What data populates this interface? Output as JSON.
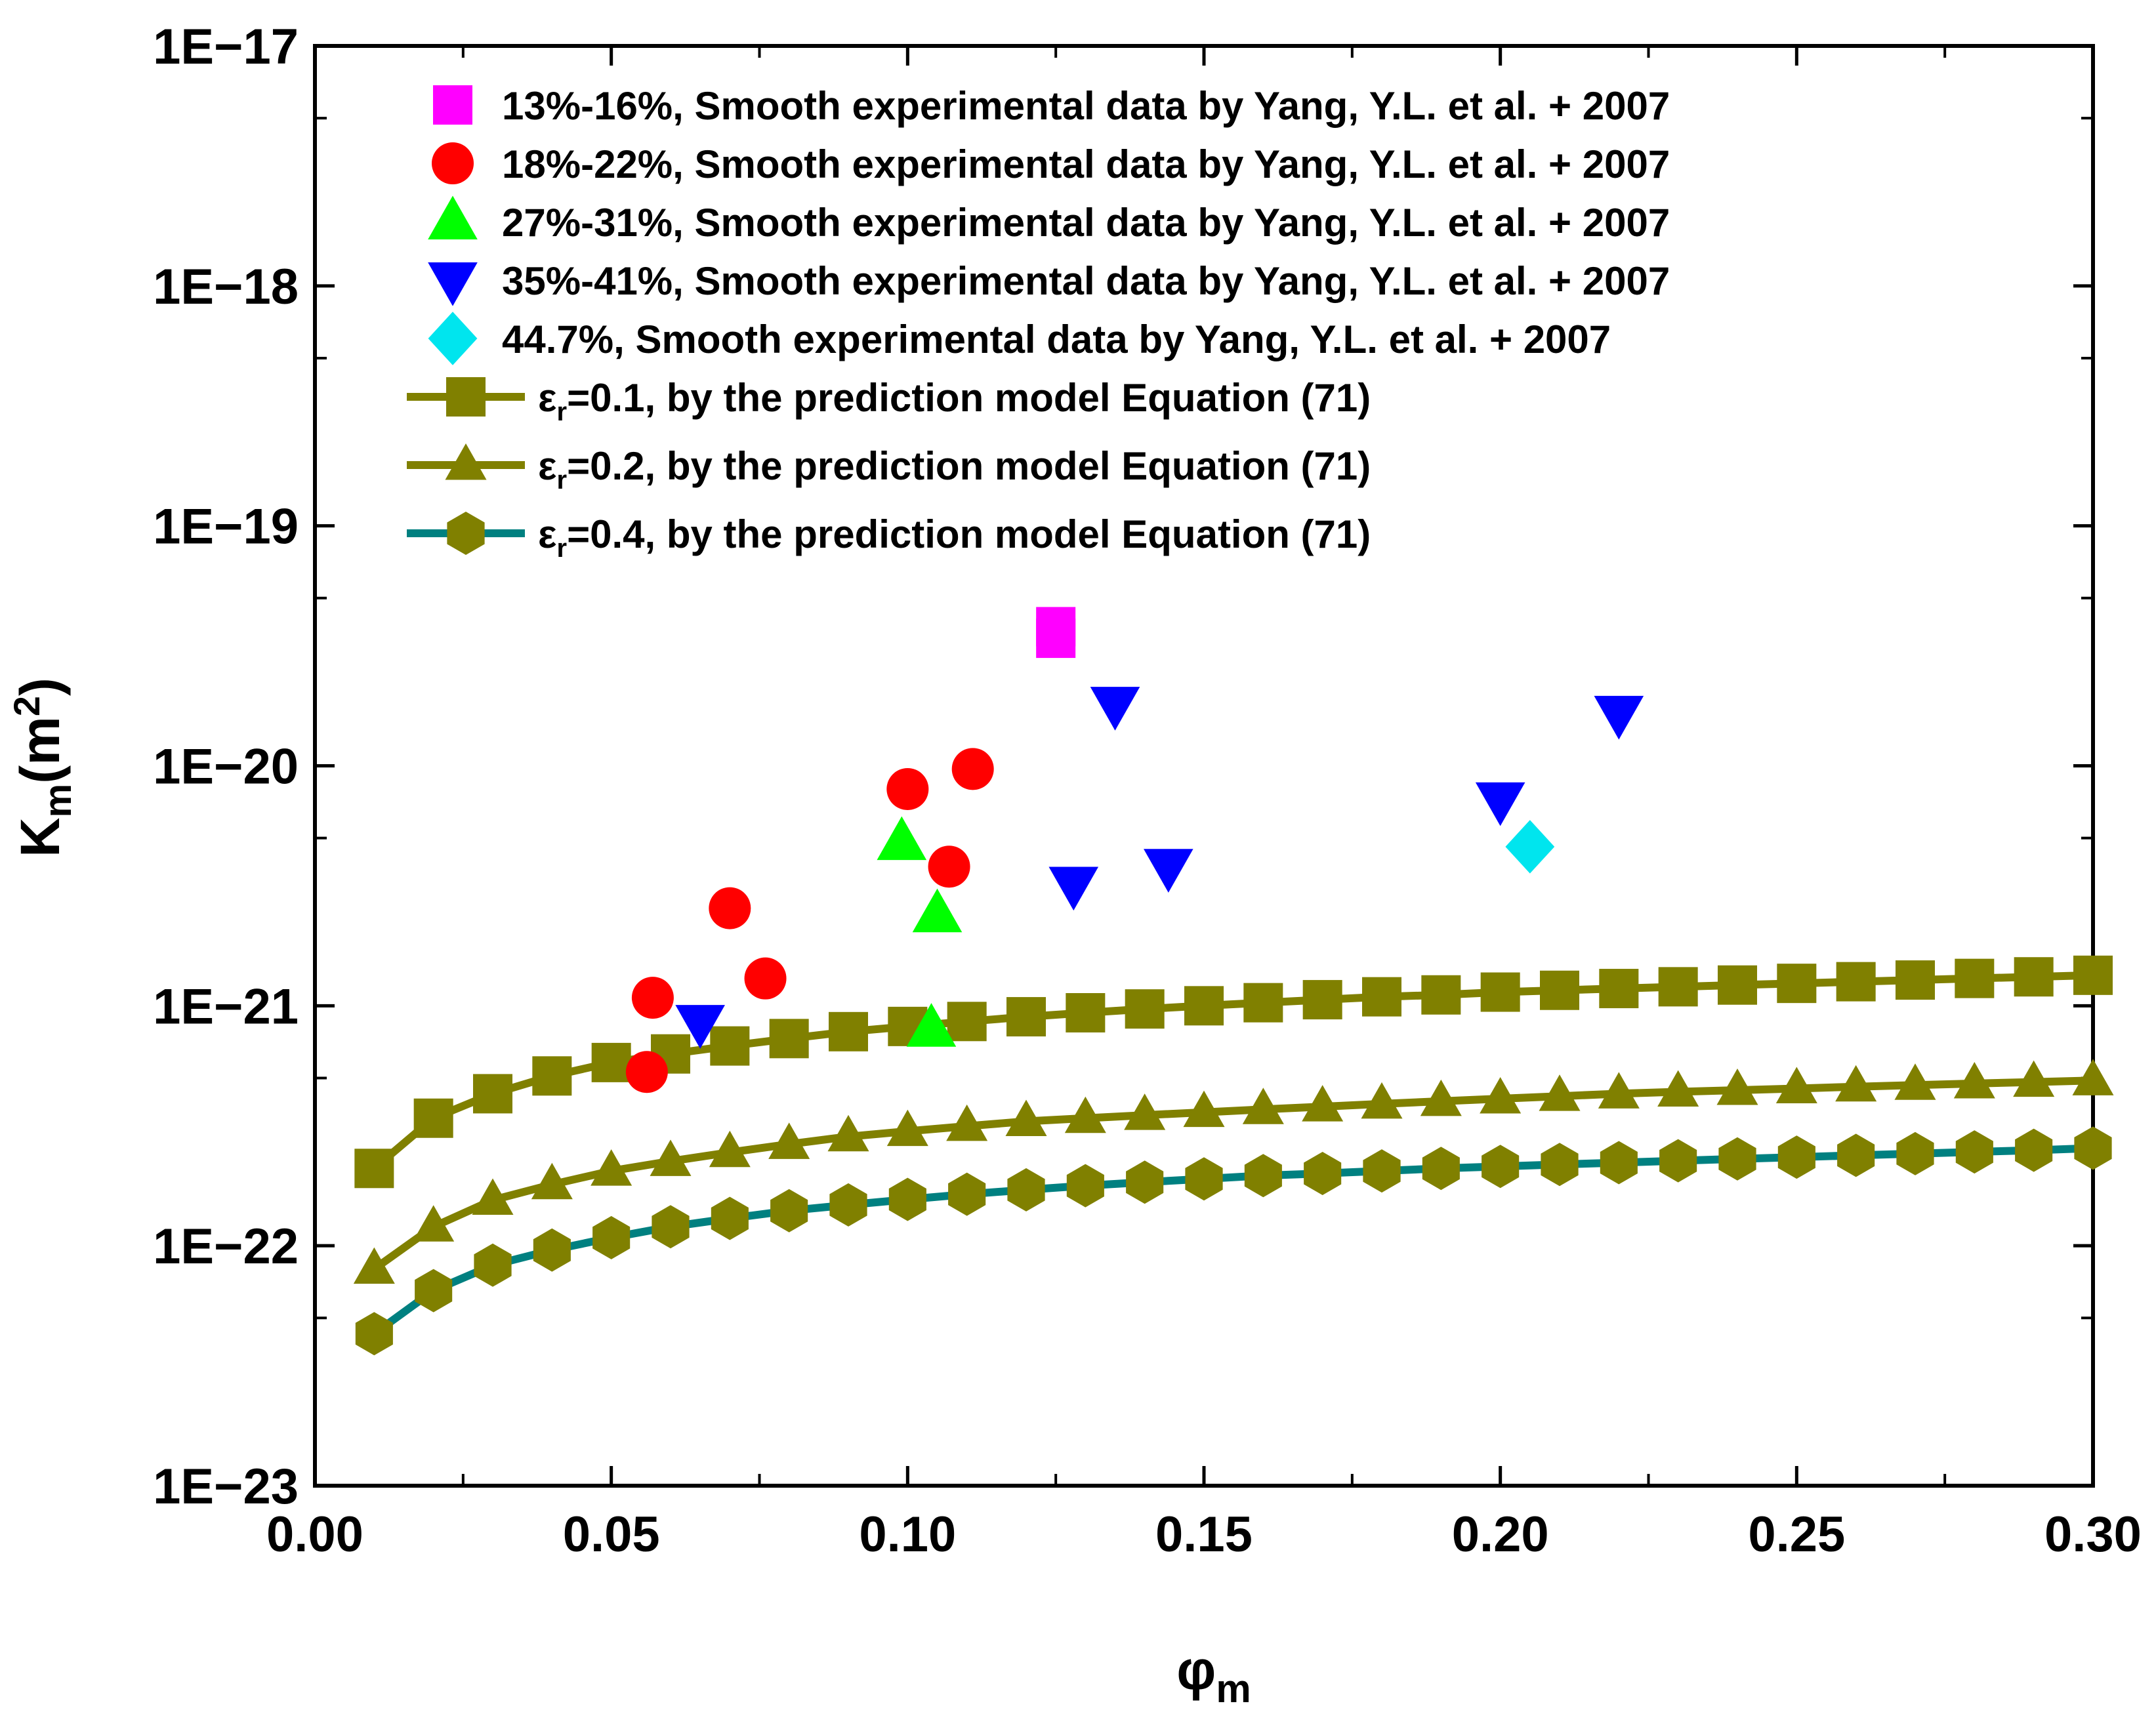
{
  "chart_data": {
    "type": "scatter",
    "title": "",
    "xlabel": "φm",
    "ylabel": "Km(m2)",
    "xlim": [
      0.0,
      0.3
    ],
    "ylim": [
      1e-23,
      1e-17
    ],
    "yscale": "log",
    "grid": false,
    "legend_position": "top-left",
    "xtick_labels": [
      "0.00",
      "0.05",
      "0.10",
      "0.15",
      "0.20",
      "0.25",
      "0.30"
    ],
    "xtick_values": [
      0.0,
      0.05,
      0.1,
      0.15,
      0.2,
      0.25,
      0.3
    ],
    "ytick_labels": [
      "1E−23",
      "1E−22",
      "1E−21",
      "1E−20",
      "1E−19",
      "1E−18",
      "1E−17"
    ],
    "ytick_values": [
      1e-23,
      1e-22,
      1e-21,
      1e-20,
      1e-19,
      1e-18,
      1e-17
    ],
    "scatter_series": [
      {
        "name": "13%-16%, Smooth experimental data by Yang, Y.L. et al. + 2007",
        "marker": "square",
        "color": "#ff00ff",
        "points": [
          [
            0.125,
            3.8e-20
          ],
          [
            0.125,
            3.4e-20
          ]
        ]
      },
      {
        "name": "18%-22%, Smooth experimental data by Yang, Y.L. et al. + 2007",
        "marker": "circle",
        "color": "#ff0000",
        "points": [
          [
            0.057,
            1.08e-21
          ],
          [
            0.056,
            5.3e-22
          ],
          [
            0.07,
            2.55e-21
          ],
          [
            0.076,
            1.3e-21
          ],
          [
            0.1,
            8e-21
          ],
          [
            0.107,
            3.8e-21
          ],
          [
            0.111,
            9.7e-21
          ]
        ]
      },
      {
        "name": "27%-31%, Smooth experimental data by Yang, Y.L. et al. + 2007",
        "marker": "triangle-up",
        "color": "#00ff00",
        "points": [
          [
            0.099,
            4.8e-21
          ],
          [
            0.105,
            2.4e-21
          ],
          [
            0.104,
            8e-22
          ]
        ]
      },
      {
        "name": "35%-41%, Smooth experimental data by Yang, Y.L. et al. + 2007",
        "marker": "triangle-down",
        "color": "#0000ff",
        "points": [
          [
            0.065,
            8.5e-22
          ],
          [
            0.128,
            3.2e-21
          ],
          [
            0.135,
            1.8e-20
          ],
          [
            0.144,
            3.8e-21
          ],
          [
            0.2,
            7.2e-21
          ],
          [
            0.22,
            1.65e-20
          ]
        ]
      },
      {
        "name": "44.7%, Smooth experimental data by Yang, Y.L. et al. + 2007",
        "marker": "diamond",
        "color": "#00e5ee",
        "points": [
          [
            0.205,
            4.6e-21
          ]
        ]
      }
    ],
    "model_x": [
      0.01,
      0.02,
      0.03,
      0.04,
      0.05,
      0.06,
      0.07,
      0.08,
      0.09,
      0.1,
      0.11,
      0.12,
      0.13,
      0.14,
      0.15,
      0.16,
      0.17,
      0.18,
      0.19,
      0.2,
      0.21,
      0.22,
      0.23,
      0.24,
      0.25,
      0.26,
      0.27,
      0.28,
      0.29,
      0.3
    ],
    "line_series": [
      {
        "name": "=0.1, by the prediction model Equation (71)",
        "marker": "square",
        "line_color": "#808000",
        "marker_color": "#808000",
        "values": [
          2.1e-22,
          3.4e-22,
          4.3e-22,
          5.1e-22,
          5.8e-22,
          6.3e-22,
          6.8e-22,
          7.3e-22,
          7.8e-22,
          8.2e-22,
          8.6e-22,
          9e-22,
          9.35e-22,
          9.7e-22,
          1e-21,
          1.03e-21,
          1.06e-21,
          1.09e-21,
          1.11e-21,
          1.14e-21,
          1.16e-21,
          1.18e-21,
          1.2e-21,
          1.22e-21,
          1.24e-21,
          1.26e-21,
          1.28e-21,
          1.3e-21,
          1.32e-21,
          1.34e-21
        ]
      },
      {
        "name": "=0.2, by the prediction model Equation (71)",
        "marker": "triangle-up",
        "line_color": "#808000",
        "marker_color": "#808000",
        "values": [
          8e-23,
          1.2e-22,
          1.55e-22,
          1.8e-22,
          2.05e-22,
          2.25e-22,
          2.45e-22,
          2.65e-22,
          2.85e-22,
          3e-22,
          3.15e-22,
          3.3e-22,
          3.4e-22,
          3.5e-22,
          3.6e-22,
          3.7e-22,
          3.8e-22,
          3.9e-22,
          4e-22,
          4.1e-22,
          4.2e-22,
          4.3e-22,
          4.38e-22,
          4.45e-22,
          4.52e-22,
          4.6e-22,
          4.67e-22,
          4.74e-22,
          4.81e-22,
          4.88e-22
        ]
      },
      {
        "name": "=0.4, by the prediction model Equation (71)",
        "marker": "hexagon",
        "line_color": "#008080",
        "marker_color": "#808000",
        "values": [
          4.3e-23,
          6.5e-23,
          8.3e-23,
          9.6e-23,
          1.08e-22,
          1.2e-22,
          1.3e-22,
          1.4e-22,
          1.48e-22,
          1.56e-22,
          1.64e-22,
          1.71e-22,
          1.78e-22,
          1.84e-22,
          1.9e-22,
          1.96e-22,
          2e-22,
          2.05e-22,
          2.1e-22,
          2.14e-22,
          2.18e-22,
          2.22e-22,
          2.26e-22,
          2.3e-22,
          2.34e-22,
          2.38e-22,
          2.42e-22,
          2.46e-22,
          2.5e-22,
          2.55e-22
        ]
      }
    ],
    "legend_symbol_letter": "ε",
    "legend_symbol_sub": "r"
  }
}
